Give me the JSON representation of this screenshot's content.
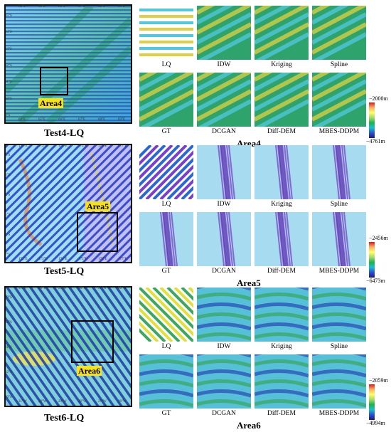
{
  "rows": [
    {
      "id": "row4",
      "overview_caption": "Test4-LQ",
      "area_tag": "Area4",
      "area_caption": "Area4",
      "cbar_max": "−2000m",
      "cbar_min": "−4761m",
      "lon_ticks": [
        "64°E",
        "65°E",
        "66°E",
        "67°E",
        "68°E",
        "69°E"
      ],
      "lat_ticks": [
        "15°S",
        "14°S",
        "13°S",
        "12°S",
        "11°S",
        "10°S",
        "9°S"
      ],
      "tiles": [
        "LQ",
        "IDW",
        "Kriging",
        "Spline",
        "GT",
        "DCGAN",
        "Diff-DEM",
        "MBES-DDPM"
      ]
    },
    {
      "id": "row5",
      "overview_caption": "Test5-LQ",
      "area_tag": "Area5",
      "area_caption": "Area5",
      "cbar_max": "−2456m",
      "cbar_min": "−6473m",
      "lon_ticks": [
        "172°E",
        "173°E",
        "174°E",
        "175°E",
        "176°E",
        "177°E"
      ],
      "lat_ticks": [
        "2°S",
        "3°S",
        "4°S",
        "5°S",
        "6°S",
        "7°S"
      ],
      "tiles": [
        "LQ",
        "IDW",
        "Kriging",
        "Spline",
        "GT",
        "DCGAN",
        "Diff-DEM",
        "MBES-DDPM"
      ]
    },
    {
      "id": "row6",
      "overview_caption": "Test6-LQ",
      "area_tag": "Area6",
      "area_caption": "Area6",
      "cbar_max": "−2059m",
      "cbar_min": "−4994m",
      "lon_ticks": [
        "31°W",
        "30°W",
        "29°W",
        "28°W",
        "27°W",
        "26°W"
      ],
      "lat_ticks": [
        "29°S",
        "30°S",
        "31°S",
        "32°S",
        "33°S"
      ],
      "tiles": [
        "LQ",
        "IDW",
        "Kriging",
        "Spline",
        "GT",
        "DCGAN",
        "Diff-DEM",
        "MBES-DDPM"
      ]
    }
  ]
}
